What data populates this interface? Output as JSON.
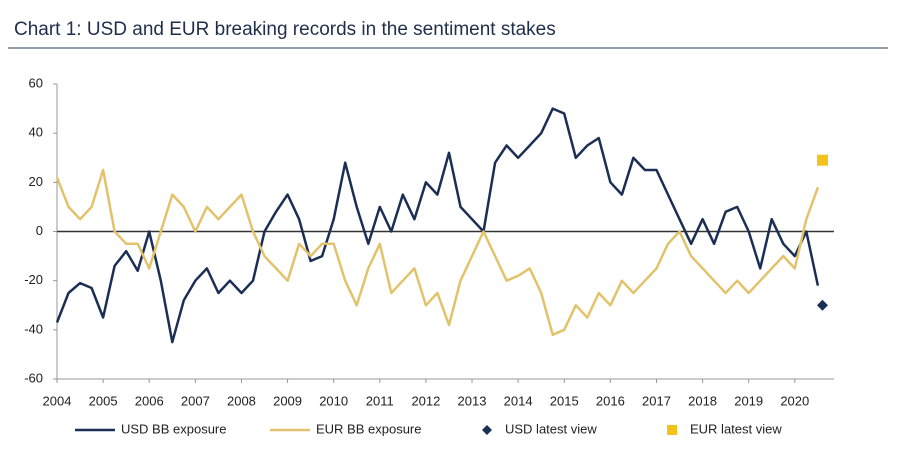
{
  "chart_data": {
    "type": "line",
    "title": "Chart 1: USD and EUR breaking records in the sentiment stakes",
    "x": [
      2004.0,
      2004.25,
      2004.5,
      2004.75,
      2005.0,
      2005.25,
      2005.5,
      2005.75,
      2006.0,
      2006.25,
      2006.5,
      2006.75,
      2007.0,
      2007.25,
      2007.5,
      2007.75,
      2008.0,
      2008.25,
      2008.5,
      2008.75,
      2009.0,
      2009.25,
      2009.5,
      2009.75,
      2010.0,
      2010.25,
      2010.5,
      2010.75,
      2011.0,
      2011.25,
      2011.5,
      2011.75,
      2012.0,
      2012.25,
      2012.5,
      2012.75,
      2013.0,
      2013.25,
      2013.5,
      2013.75,
      2014.0,
      2014.25,
      2014.5,
      2014.75,
      2015.0,
      2015.25,
      2015.5,
      2015.75,
      2016.0,
      2016.25,
      2016.5,
      2016.75,
      2017.0,
      2017.25,
      2017.5,
      2017.75,
      2018.0,
      2018.25,
      2018.5,
      2018.75,
      2019.0,
      2019.25,
      2019.5,
      2019.75,
      2020.0,
      2020.25,
      2020.5
    ],
    "series": [
      {
        "name": "USD BB exposure",
        "color": "#1b2f55",
        "values": [
          -37,
          -25,
          -21,
          -23,
          -35,
          -14,
          -8,
          -16,
          0,
          -20,
          -45,
          -28,
          -20,
          -15,
          -25,
          -20,
          -25,
          -20,
          0,
          8,
          15,
          5,
          -12,
          -10,
          5,
          28,
          10,
          -5,
          10,
          0,
          15,
          5,
          20,
          15,
          32,
          10,
          5,
          0,
          28,
          35,
          30,
          35,
          40,
          50,
          48,
          30,
          35,
          38,
          20,
          15,
          30,
          25,
          25,
          15,
          5,
          -5,
          5,
          -5,
          8,
          10,
          0,
          -15,
          5,
          -5,
          -10,
          0,
          -22
        ]
      },
      {
        "name": "EUR BB exposure",
        "color": "#e2c36b",
        "values": [
          22,
          10,
          5,
          10,
          25,
          0,
          -5,
          -5,
          -15,
          0,
          15,
          10,
          0,
          10,
          5,
          10,
          15,
          0,
          -10,
          -15,
          -20,
          -5,
          -10,
          -5,
          -5,
          -20,
          -30,
          -15,
          -5,
          -25,
          -20,
          -15,
          -30,
          -25,
          -38,
          -20,
          -10,
          0,
          -10,
          -20,
          -18,
          -15,
          -25,
          -42,
          -40,
          -30,
          -35,
          -25,
          -30,
          -20,
          -25,
          -20,
          -15,
          -5,
          0,
          -10,
          -15,
          -20,
          -25,
          -20,
          -25,
          -20,
          -15,
          -10,
          -15,
          5,
          18
        ]
      }
    ],
    "markers": [
      {
        "name": "USD latest view",
        "color": "#1b2f55",
        "shape": "diamond",
        "x": 2020.6,
        "value": -30
      },
      {
        "name": "EUR latest view",
        "color": "#f2c31b",
        "shape": "square",
        "x": 2020.6,
        "value": 29
      }
    ],
    "xlim": [
      2004,
      2020.85
    ],
    "xticks": [
      2004,
      2005,
      2006,
      2007,
      2008,
      2009,
      2010,
      2011,
      2012,
      2013,
      2014,
      2015,
      2016,
      2017,
      2018,
      2019,
      2020
    ],
    "ylim": [
      -60,
      60
    ],
    "yticks": [
      -60,
      -40,
      -20,
      0,
      20,
      40,
      60
    ],
    "zero_line": true
  }
}
